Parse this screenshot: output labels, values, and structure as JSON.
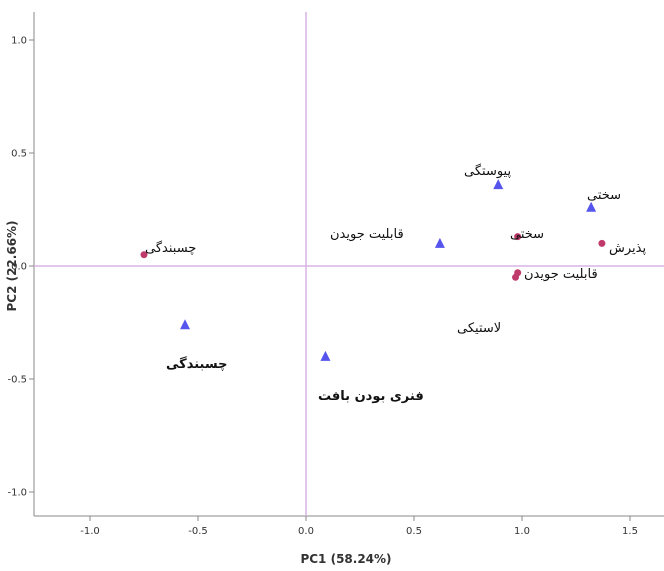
{
  "chart_data": {
    "type": "scatter",
    "xlabel": "PC1 (58.24%)",
    "ylabel": "PC2 (22.66%)",
    "xlim": [
      -1.1,
      1.6
    ],
    "ylim": [
      -1.1,
      1.1
    ],
    "xticks": [
      -1.0,
      -0.5,
      0.0,
      0.5,
      1.0,
      1.5
    ],
    "yticks": [
      -1.0,
      -0.5,
      0.0,
      0.5,
      1.0
    ],
    "xtick_labels": [
      "-1.0",
      "-0.5",
      "0.0",
      "0.5",
      "1.0",
      "1.5"
    ],
    "ytick_labels": [
      "-1.0",
      "-0.5",
      "0.0",
      "0.5",
      "1.0"
    ],
    "reference_lines": {
      "x": 0,
      "y": 0
    },
    "grid": false,
    "series": [
      {
        "marker": "circle",
        "color": "#c0396b",
        "points": [
          {
            "x": -0.75,
            "y": 0.05,
            "label": "چسبندگی"
          },
          {
            "x": 0.98,
            "y": 0.13,
            "label": "سختی"
          },
          {
            "x": 1.37,
            "y": 0.1,
            "label": "پذیرش"
          },
          {
            "x": 0.98,
            "y": -0.03,
            "label": "قابلیت جویدن"
          },
          {
            "x": 0.97,
            "y": -0.05,
            "label": "لاستیکی"
          }
        ]
      },
      {
        "marker": "triangle",
        "color": "#5555ee",
        "points": [
          {
            "x": -0.56,
            "y": -0.26,
            "label": "چسبندگی"
          },
          {
            "x": 0.62,
            "y": 0.1,
            "label": "قابلیت جویدن"
          },
          {
            "x": 0.89,
            "y": 0.36,
            "label": "پیوستگی"
          },
          {
            "x": 1.32,
            "y": 0.26,
            "label": "سختی"
          },
          {
            "x": 0.09,
            "y": -0.4,
            "label": "فنری بودن بافت"
          }
        ]
      }
    ]
  }
}
